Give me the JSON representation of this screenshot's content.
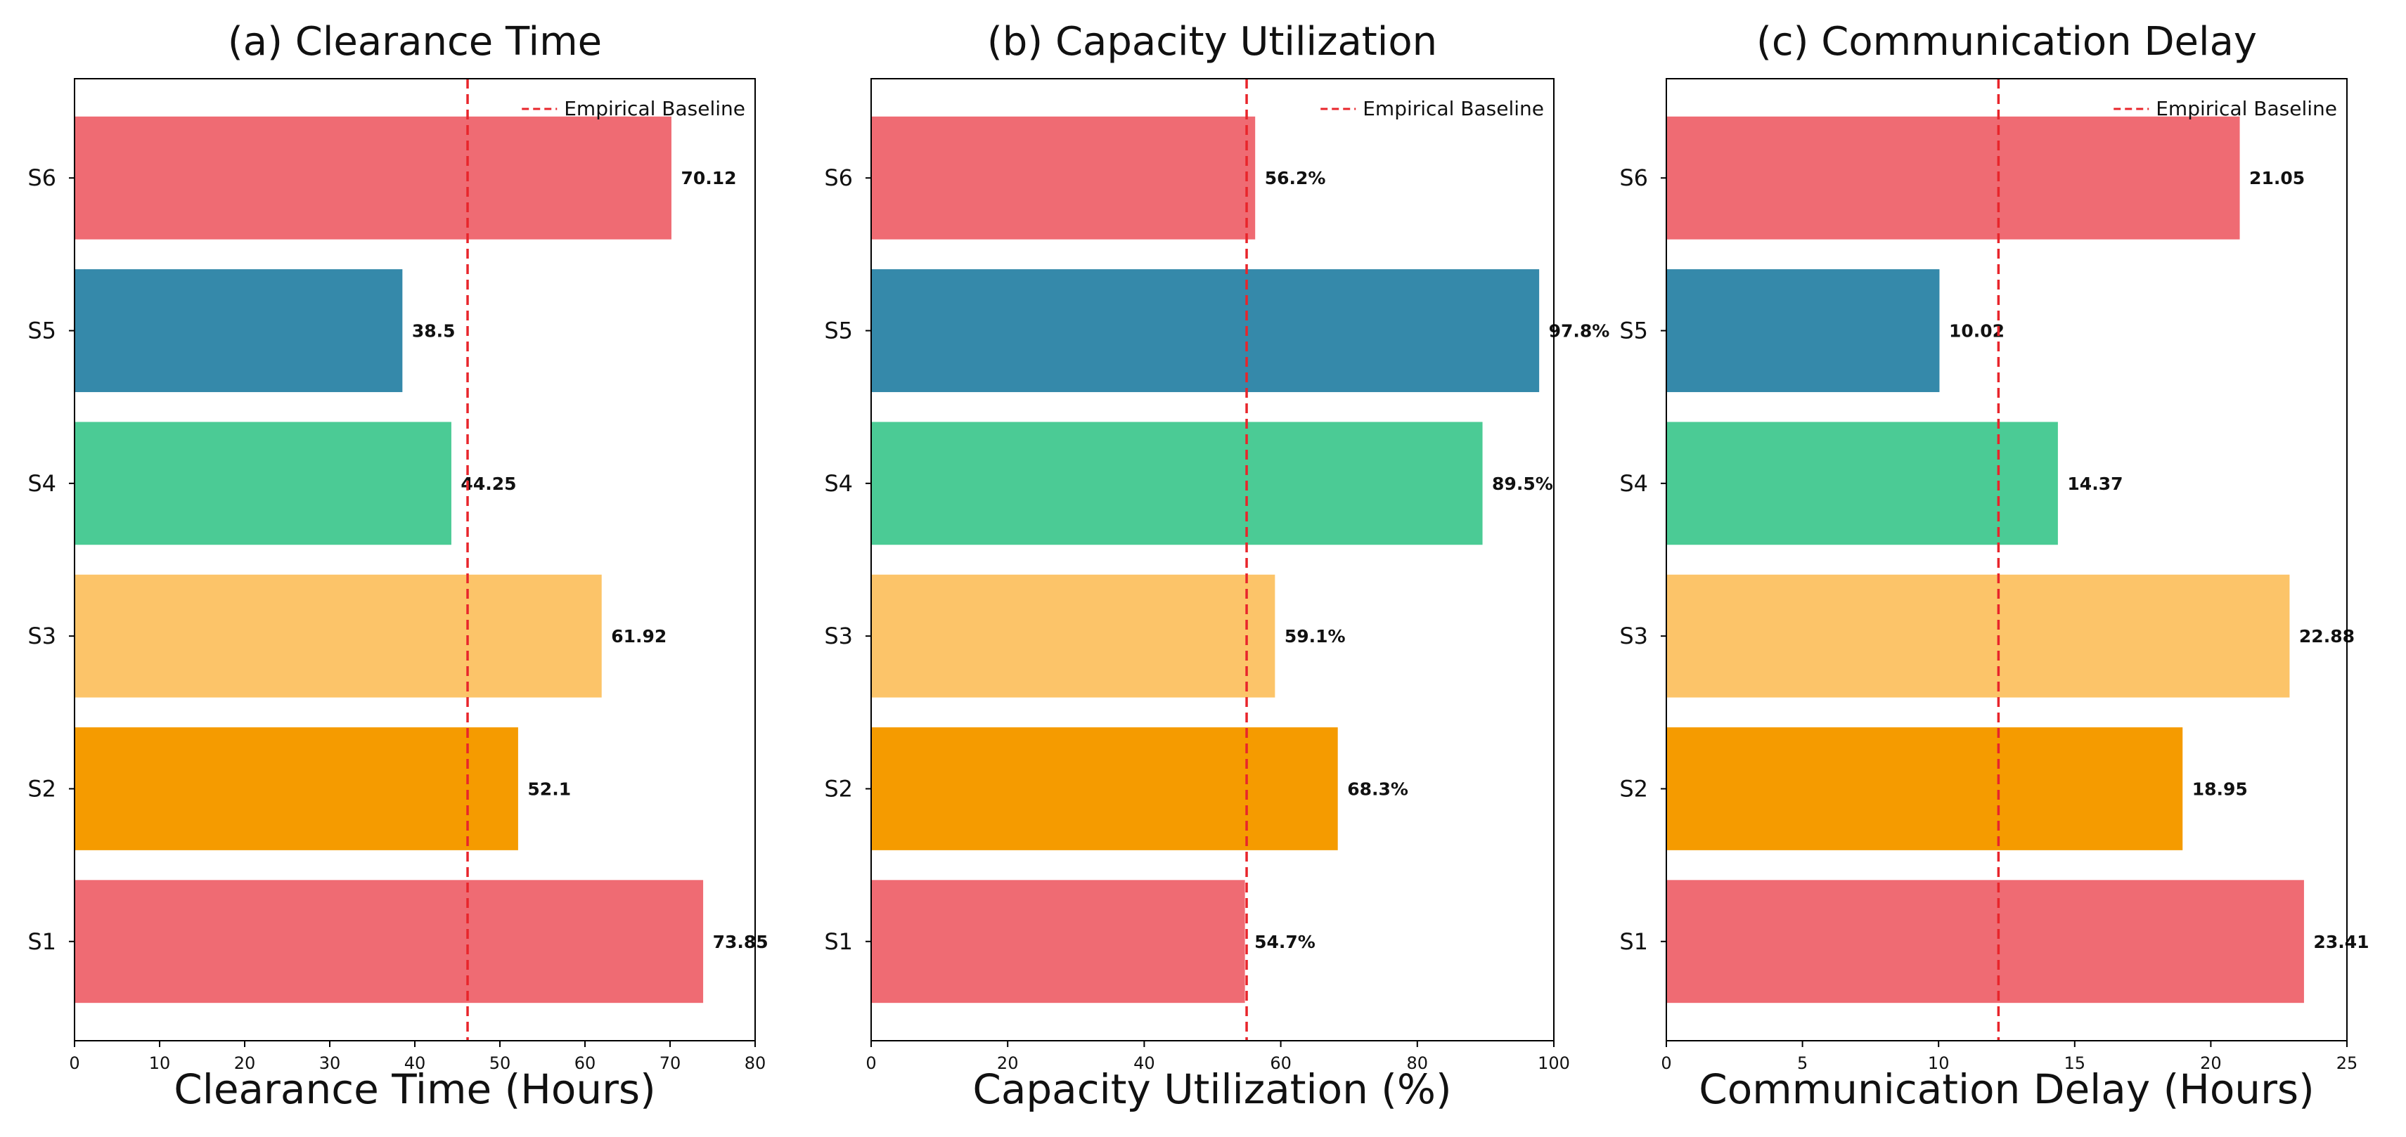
{
  "chart_data": [
    {
      "type": "bar",
      "orientation": "horizontal",
      "title": "(a) Clearance Time",
      "xlabel": "Clearance Time (Hours)",
      "ylabel": "",
      "categories": [
        "S1",
        "S2",
        "S3",
        "S4",
        "S5",
        "S6"
      ],
      "values": [
        73.85,
        52.1,
        61.92,
        44.25,
        38.5,
        70.12
      ],
      "value_labels": [
        "73.85",
        "52.1",
        "61.92",
        "44.25",
        "38.5",
        "70.12"
      ],
      "colors": [
        "#ef6b73",
        "#f59b00",
        "#fcc469",
        "#4bcb95",
        "#3589aa",
        "#ef6b73"
      ],
      "xlim": [
        0,
        80
      ],
      "xticks": [
        0,
        10,
        20,
        30,
        40,
        50,
        60,
        70,
        80
      ],
      "baseline": {
        "label": "Empirical Baseline",
        "value": 46.2,
        "color": "#e8252b"
      },
      "legend_position": "top-right"
    },
    {
      "type": "bar",
      "orientation": "horizontal",
      "title": "(b) Capacity Utilization",
      "xlabel": "Capacity Utilization (%)",
      "ylabel": "",
      "categories": [
        "S1",
        "S2",
        "S3",
        "S4",
        "S5",
        "S6"
      ],
      "values": [
        54.7,
        68.3,
        59.1,
        89.5,
        97.8,
        56.2
      ],
      "value_labels": [
        "54.7%",
        "68.3%",
        "59.1%",
        "89.5%",
        "97.8%",
        "56.2%"
      ],
      "colors": [
        "#ef6b73",
        "#f59b00",
        "#fcc469",
        "#4bcb95",
        "#3589aa",
        "#ef6b73"
      ],
      "xlim": [
        0,
        100
      ],
      "xticks": [
        0,
        20,
        40,
        60,
        80,
        100
      ],
      "baseline": {
        "label": "Empirical Baseline",
        "value": 55.0,
        "color": "#e8252b"
      },
      "legend_position": "top-right"
    },
    {
      "type": "bar",
      "orientation": "horizontal",
      "title": "(c) Communication Delay",
      "xlabel": "Communication Delay (Hours)",
      "ylabel": "",
      "categories": [
        "S1",
        "S2",
        "S3",
        "S4",
        "S5",
        "S6"
      ],
      "values": [
        23.41,
        18.95,
        22.88,
        14.37,
        10.02,
        21.05
      ],
      "value_labels": [
        "23.41",
        "18.95",
        "22.88",
        "14.37",
        "10.02",
        "21.05"
      ],
      "colors": [
        "#ef6b73",
        "#f59b00",
        "#fcc469",
        "#4bcb95",
        "#3589aa",
        "#ef6b73"
      ],
      "xlim": [
        0,
        25
      ],
      "xticks": [
        0,
        5,
        10,
        15,
        20,
        25
      ],
      "baseline": {
        "label": "Empirical Baseline",
        "value": 12.2,
        "color": "#e8252b"
      },
      "legend_position": "top-right"
    }
  ]
}
